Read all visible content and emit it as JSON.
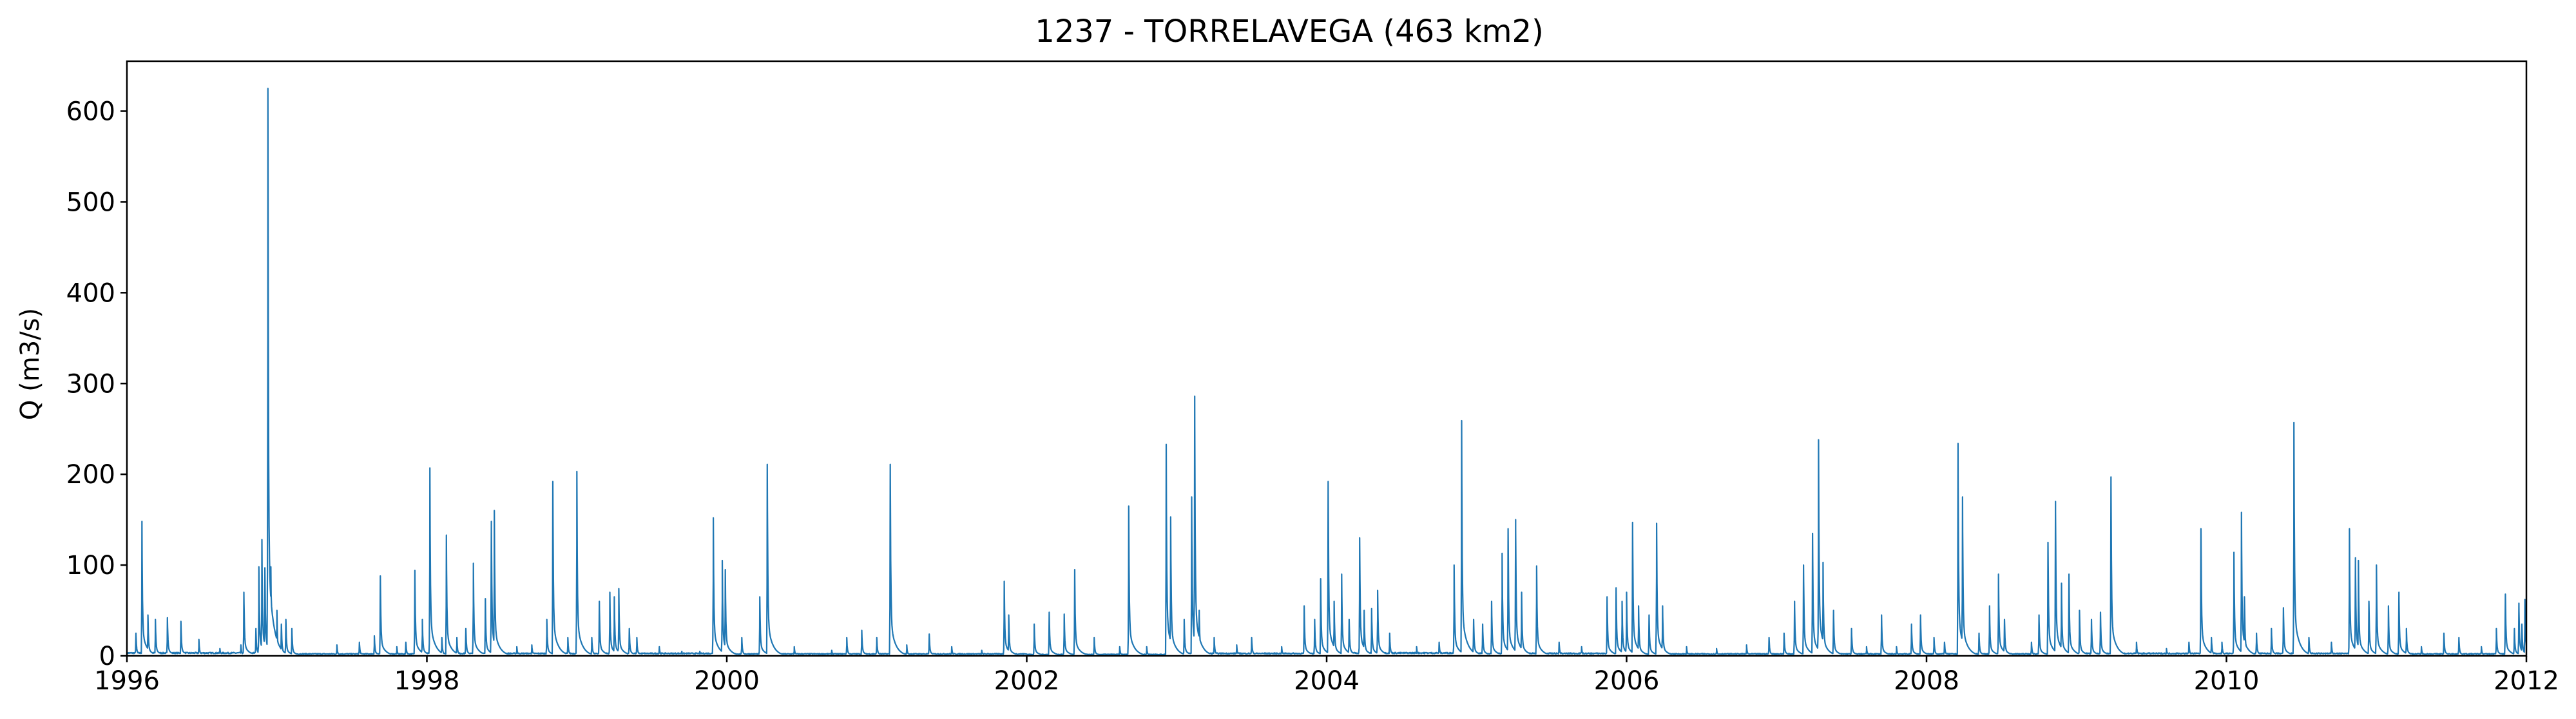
{
  "chart_data": {
    "type": "line",
    "title": "1237 - TORRELAVEGA (463 km2)",
    "xlabel": "",
    "ylabel": "Q (m3/s)",
    "xlim": [
      1996,
      2012
    ],
    "ylim": [
      0,
      655
    ],
    "xticks": [
      "1996",
      "1998",
      "2000",
      "2002",
      "2004",
      "2006",
      "2008",
      "2010",
      "2012"
    ],
    "yticks": [
      "0",
      "100",
      "200",
      "300",
      "400",
      "500",
      "600"
    ],
    "grid": false,
    "legend": "none",
    "color": "#1f77b4",
    "baseflow_by_year": [
      [
        1996,
        3
      ],
      [
        1997,
        2
      ],
      [
        1998,
        2.5
      ],
      [
        1999,
        2.5
      ],
      [
        2000,
        2
      ],
      [
        2001,
        2
      ],
      [
        2002,
        1.5
      ],
      [
        2003,
        2.5
      ],
      [
        2004,
        3
      ],
      [
        2005,
        2.5
      ],
      [
        2006,
        2
      ],
      [
        2007,
        2
      ],
      [
        2008,
        2
      ],
      [
        2009,
        2.5
      ],
      [
        2010,
        2.5
      ],
      [
        2011,
        2
      ]
    ],
    "series": [
      {
        "values": [
          [
            1996.06,
            25
          ],
          [
            1996.1,
            148
          ],
          [
            1996.14,
            45
          ],
          [
            1996.19,
            40
          ],
          [
            1996.27,
            42
          ],
          [
            1996.36,
            38
          ],
          [
            1996.48,
            18
          ],
          [
            1996.62,
            8
          ],
          [
            1996.76,
            12
          ],
          [
            1996.78,
            70
          ],
          [
            1996.86,
            30
          ],
          [
            1996.88,
            98
          ],
          [
            1996.9,
            128
          ],
          [
            1996.92,
            97
          ],
          [
            1996.94,
            625
          ],
          [
            1996.96,
            98
          ],
          [
            1997.0,
            50
          ],
          [
            1997.03,
            35
          ],
          [
            1997.06,
            40
          ],
          [
            1997.1,
            30
          ],
          [
            1997.4,
            12
          ],
          [
            1997.55,
            15
          ],
          [
            1997.65,
            22
          ],
          [
            1997.69,
            88
          ],
          [
            1997.8,
            10
          ],
          [
            1997.86,
            15
          ],
          [
            1997.92,
            94
          ],
          [
            1997.97,
            40
          ],
          [
            1998.02,
            207
          ],
          [
            1998.1,
            20
          ],
          [
            1998.13,
            133
          ],
          [
            1998.2,
            20
          ],
          [
            1998.26,
            30
          ],
          [
            1998.31,
            102
          ],
          [
            1998.39,
            63
          ],
          [
            1998.43,
            148
          ],
          [
            1998.45,
            160
          ],
          [
            1998.6,
            10
          ],
          [
            1998.7,
            12
          ],
          [
            1998.8,
            40
          ],
          [
            1998.84,
            192
          ],
          [
            1998.94,
            20
          ],
          [
            1999.0,
            203
          ],
          [
            1999.1,
            20
          ],
          [
            1999.15,
            60
          ],
          [
            1999.22,
            70
          ],
          [
            1999.25,
            65
          ],
          [
            1999.28,
            74
          ],
          [
            1999.35,
            30
          ],
          [
            1999.4,
            20
          ],
          [
            1999.55,
            10
          ],
          [
            1999.7,
            5
          ],
          [
            1999.82,
            5
          ],
          [
            1999.91,
            152
          ],
          [
            1999.97,
            105
          ],
          [
            1999.99,
            95
          ],
          [
            2000.1,
            20
          ],
          [
            2000.22,
            65
          ],
          [
            2000.27,
            211
          ],
          [
            2000.45,
            10
          ],
          [
            2000.7,
            6
          ],
          [
            2000.8,
            20
          ],
          [
            2000.9,
            28
          ],
          [
            2001.0,
            20
          ],
          [
            2001.09,
            211
          ],
          [
            2001.2,
            12
          ],
          [
            2001.35,
            24
          ],
          [
            2001.5,
            10
          ],
          [
            2001.7,
            6
          ],
          [
            2001.85,
            82
          ],
          [
            2001.88,
            45
          ],
          [
            2002.05,
            35
          ],
          [
            2002.15,
            48
          ],
          [
            2002.25,
            46
          ],
          [
            2002.32,
            95
          ],
          [
            2002.45,
            20
          ],
          [
            2002.62,
            10
          ],
          [
            2002.68,
            165
          ],
          [
            2002.8,
            10
          ],
          [
            2002.93,
            233
          ],
          [
            2002.96,
            153
          ],
          [
            2003.05,
            40
          ],
          [
            2003.1,
            175
          ],
          [
            2003.12,
            286
          ],
          [
            2003.15,
            50
          ],
          [
            2003.25,
            20
          ],
          [
            2003.4,
            12
          ],
          [
            2003.5,
            20
          ],
          [
            2003.7,
            10
          ],
          [
            2003.85,
            55
          ],
          [
            2003.92,
            40
          ],
          [
            2003.96,
            85
          ],
          [
            2004.01,
            192
          ],
          [
            2004.05,
            60
          ],
          [
            2004.1,
            90
          ],
          [
            2004.15,
            40
          ],
          [
            2004.22,
            130
          ],
          [
            2004.25,
            50
          ],
          [
            2004.3,
            52
          ],
          [
            2004.34,
            72
          ],
          [
            2004.42,
            25
          ],
          [
            2004.6,
            10
          ],
          [
            2004.75,
            15
          ],
          [
            2004.85,
            100
          ],
          [
            2004.9,
            259
          ],
          [
            2004.98,
            40
          ],
          [
            2005.04,
            35
          ],
          [
            2005.1,
            60
          ],
          [
            2005.17,
            113
          ],
          [
            2005.21,
            140
          ],
          [
            2005.26,
            150
          ],
          [
            2005.3,
            70
          ],
          [
            2005.4,
            99
          ],
          [
            2005.55,
            15
          ],
          [
            2005.7,
            10
          ],
          [
            2005.87,
            65
          ],
          [
            2005.93,
            75
          ],
          [
            2005.97,
            60
          ],
          [
            2006.0,
            70
          ],
          [
            2006.04,
            147
          ],
          [
            2006.08,
            55
          ],
          [
            2006.15,
            45
          ],
          [
            2006.2,
            146
          ],
          [
            2006.24,
            55
          ],
          [
            2006.4,
            10
          ],
          [
            2006.6,
            8
          ],
          [
            2006.8,
            12
          ],
          [
            2006.95,
            20
          ],
          [
            2007.05,
            25
          ],
          [
            2007.12,
            60
          ],
          [
            2007.18,
            100
          ],
          [
            2007.24,
            135
          ],
          [
            2007.28,
            238
          ],
          [
            2007.31,
            103
          ],
          [
            2007.38,
            50
          ],
          [
            2007.5,
            30
          ],
          [
            2007.6,
            10
          ],
          [
            2007.7,
            45
          ],
          [
            2007.8,
            10
          ],
          [
            2007.9,
            35
          ],
          [
            2007.96,
            45
          ],
          [
            2008.05,
            20
          ],
          [
            2008.12,
            15
          ],
          [
            2008.21,
            234
          ],
          [
            2008.24,
            175
          ],
          [
            2008.35,
            25
          ],
          [
            2008.42,
            55
          ],
          [
            2008.48,
            90
          ],
          [
            2008.52,
            40
          ],
          [
            2008.7,
            15
          ],
          [
            2008.75,
            45
          ],
          [
            2008.81,
            125
          ],
          [
            2008.86,
            170
          ],
          [
            2008.9,
            80
          ],
          [
            2008.95,
            90
          ],
          [
            2009.02,
            50
          ],
          [
            2009.1,
            40
          ],
          [
            2009.16,
            48
          ],
          [
            2009.23,
            197
          ],
          [
            2009.4,
            15
          ],
          [
            2009.6,
            8
          ],
          [
            2009.75,
            15
          ],
          [
            2009.83,
            140
          ],
          [
            2009.9,
            20
          ],
          [
            2009.97,
            15
          ],
          [
            2010.05,
            114
          ],
          [
            2010.1,
            158
          ],
          [
            2010.12,
            65
          ],
          [
            2010.2,
            25
          ],
          [
            2010.3,
            30
          ],
          [
            2010.38,
            53
          ],
          [
            2010.45,
            257
          ],
          [
            2010.55,
            20
          ],
          [
            2010.7,
            15
          ],
          [
            2010.82,
            140
          ],
          [
            2010.86,
            108
          ],
          [
            2010.88,
            105
          ],
          [
            2010.95,
            60
          ],
          [
            2011.0,
            100
          ],
          [
            2011.08,
            55
          ],
          [
            2011.15,
            70
          ],
          [
            2011.2,
            30
          ],
          [
            2011.3,
            10
          ],
          [
            2011.45,
            25
          ],
          [
            2011.55,
            20
          ],
          [
            2011.7,
            10
          ],
          [
            2011.8,
            30
          ],
          [
            2011.86,
            68
          ],
          [
            2011.92,
            30
          ],
          [
            2011.95,
            58
          ],
          [
            2011.97,
            35
          ],
          [
            2011.99,
            62
          ]
        ]
      }
    ]
  }
}
